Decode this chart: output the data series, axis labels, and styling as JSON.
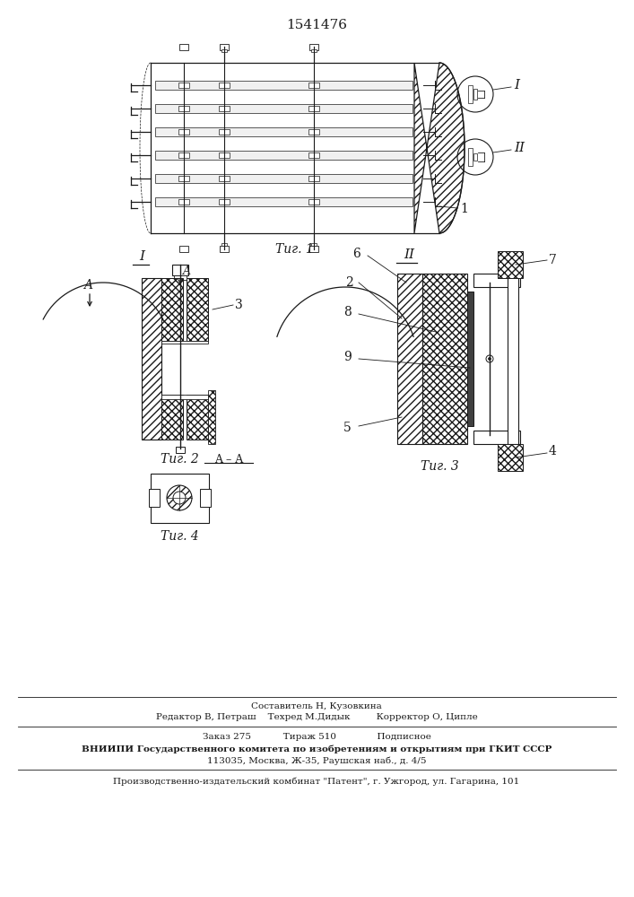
{
  "patent_number": "1541476",
  "bg_color": "#ffffff",
  "line_color": "#1a1a1a",
  "footer_line1": "Составитель Н, Кузовкина",
  "footer_line2": "Редактор В, Петраш    Техред М.Дидык         Корректор О, Ципле",
  "footer_line3": "Заказ 275           Тираж 510              Подписное",
  "footer_line4": "ВНИИПИ Государственного комитета по изобретениям и открытиям при ГКИТ СССР",
  "footer_line5": "113035, Москва, Ж-35, Раушская наб., д. 4/5",
  "footer_line6": "Производственно-издательский комбинат \"Патент\", г. Ужгород, ул. Гагарина, 101"
}
